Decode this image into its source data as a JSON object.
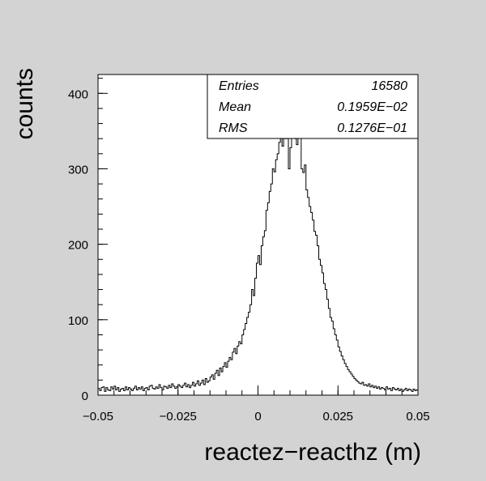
{
  "chart_data": {
    "type": "histogram",
    "xlabel": "reactez−reacthz (m)",
    "ylabel": "counts",
    "xlim": [
      -0.05,
      0.05
    ],
    "ylim": [
      0,
      425
    ],
    "x_ticks": [
      -0.05,
      -0.025,
      0,
      0.025,
      0.05
    ],
    "x_tick_labels": [
      "−0.05",
      "−0.025",
      "0",
      "0.025",
      "0.05"
    ],
    "y_ticks": [
      0,
      100,
      200,
      300,
      400
    ],
    "y_tick_labels": [
      "0",
      "100",
      "200",
      "300",
      "400"
    ],
    "bin_count": 200,
    "bin_width": 0.0005,
    "bin_start": -0.05,
    "values": [
      9,
      6,
      10,
      11,
      5,
      10,
      7,
      6,
      11,
      8,
      12,
      7,
      10,
      5,
      8,
      9,
      6,
      11,
      7,
      10,
      8,
      6,
      9,
      12,
      7,
      10,
      8,
      11,
      6,
      9,
      10,
      7,
      12,
      13,
      9,
      8,
      11,
      9,
      14,
      10,
      7,
      12,
      11,
      9,
      13,
      10,
      15,
      12,
      9,
      11,
      14,
      12,
      10,
      13,
      16,
      11,
      14,
      10,
      13,
      17,
      12,
      15,
      19,
      13,
      16,
      20,
      14,
      22,
      17,
      19,
      24,
      27,
      21,
      29,
      33,
      26,
      36,
      31,
      38,
      43,
      37,
      45,
      50,
      47,
      57,
      62,
      55,
      65,
      71,
      68,
      80,
      87,
      95,
      103,
      110,
      120,
      140,
      132,
      155,
      175,
      185,
      173,
      198,
      210,
      218,
      245,
      255,
      270,
      280,
      300,
      296,
      312,
      320,
      335,
      345,
      330,
      350,
      340,
      375,
      300,
      328,
      342,
      345,
      340,
      332,
      350,
      355,
      300,
      295,
      305,
      272,
      262,
      250,
      242,
      232,
      217,
      212,
      198,
      180,
      172,
      162,
      148,
      140,
      127,
      115,
      103,
      98,
      88,
      80,
      73,
      64,
      58,
      52,
      47,
      42,
      38,
      34,
      31,
      28,
      25,
      22,
      20,
      18,
      16,
      15,
      17,
      13,
      14,
      12,
      15,
      11,
      13,
      10,
      12,
      9,
      11,
      8,
      10,
      9,
      7,
      11,
      8,
      9,
      6,
      10,
      8,
      7,
      9,
      6,
      8,
      5,
      7,
      9,
      6,
      8,
      7,
      5,
      8,
      6,
      7
    ],
    "stats": [
      {
        "label": "Entries",
        "value": "16580"
      },
      {
        "label": "Mean",
        "value": "0.1959E−02"
      },
      {
        "label": "RMS",
        "value": "0.1276E−01"
      }
    ]
  }
}
